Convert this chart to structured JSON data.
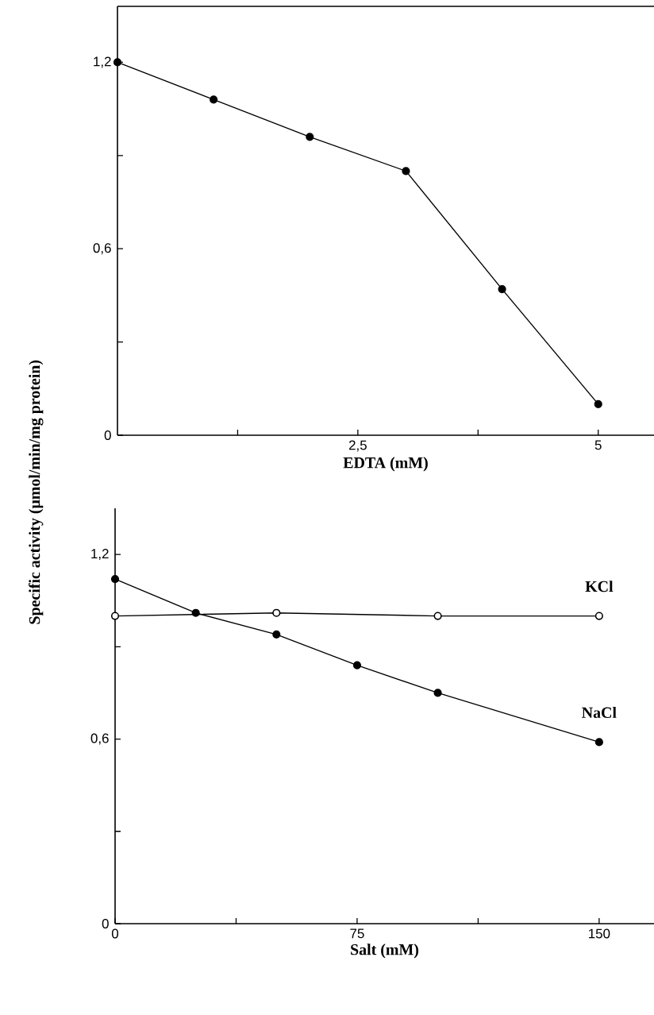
{
  "chart_data": [
    {
      "type": "line",
      "xlabel": "EDTA (mM)",
      "ylabel": "Specific activity (μmol/min/mg protein)",
      "marker": "circle",
      "line_style": "solid",
      "grid": false,
      "legend": false,
      "xlim": [
        0,
        5.58
      ],
      "ylim": [
        0,
        1.38
      ],
      "xticks": [
        {
          "value": 1.25,
          "label": null
        },
        {
          "value": 2.5,
          "label": "2,5"
        },
        {
          "value": 3.75,
          "label": null
        },
        {
          "value": 5,
          "label": "5"
        }
      ],
      "yticks": [
        {
          "value": 0,
          "label": "0"
        },
        {
          "value": 0.3,
          "label": null
        },
        {
          "value": 0.6,
          "label": "0,6"
        },
        {
          "value": 0.9,
          "label": null
        },
        {
          "value": 1.2,
          "label": "1,2"
        }
      ],
      "x": [
        0,
        1,
        2,
        3,
        4,
        5
      ],
      "series": [
        {
          "color": "#000000",
          "values": [
            1.2,
            1.08,
            0.96,
            0.85,
            0.47,
            0.1
          ]
        }
      ]
    },
    {
      "type": "line",
      "xlabel": "Salt (mM)",
      "marker": "circle",
      "line_style": "solid",
      "grid": false,
      "legend": false,
      "xlim": [
        0,
        167
      ],
      "ylim": [
        0,
        1.35
      ],
      "xticks": [
        {
          "value": 0,
          "label": "0"
        },
        {
          "value": 37.5,
          "label": null
        },
        {
          "value": 75,
          "label": "75"
        },
        {
          "value": 112.5,
          "label": null
        },
        {
          "value": 150,
          "label": "150"
        }
      ],
      "yticks": [
        {
          "value": 0,
          "label": "0"
        },
        {
          "value": 0.3,
          "label": null
        },
        {
          "value": 0.6,
          "label": "0,6"
        },
        {
          "value": 0.9,
          "label": null
        },
        {
          "value": 1.2,
          "label": "1,2"
        }
      ],
      "series": [
        {
          "name": "KCl",
          "color": "#000000",
          "marker": "open circle",
          "x": [
            0,
            50,
            100,
            150
          ],
          "values": [
            1.0,
            1.01,
            1.0,
            1.0
          ]
        },
        {
          "name": "NaCl",
          "color": "#000000",
          "x": [
            0,
            25,
            50,
            75,
            100,
            150
          ],
          "values": [
            1.12,
            1.01,
            0.94,
            0.84,
            0.75,
            0.59
          ]
        }
      ]
    }
  ]
}
